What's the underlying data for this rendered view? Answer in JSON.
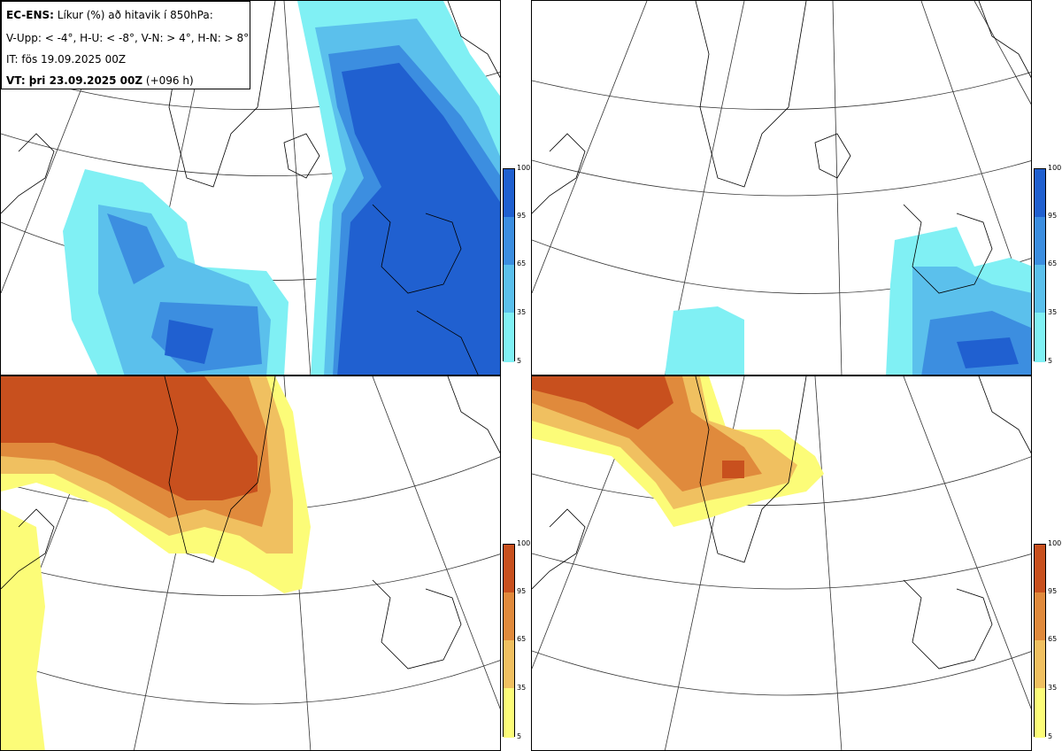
{
  "legend": {
    "line1_bold": "EC-ENS:",
    "line1_rest": " Líkur (%) að hitavik í 850hPa:",
    "line2": "V-Upp: < -4°, H-U: < -8°, V-N: > 4°, H-N: > 8°",
    "line3": "IT: fös 19.09.2025 00Z",
    "line4_bold": "VT: þri 23.09.2025 00Z",
    "line4_rest": " (+096 h)"
  },
  "colorbars": {
    "cold": {
      "ticks": [
        "100",
        "95",
        "65",
        "35",
        "5"
      ],
      "colors": [
        "#2060d0",
        "#3c8ee0",
        "#5bc0ec",
        "#80f0f4"
      ]
    },
    "warm": {
      "ticks": [
        "100",
        "95",
        "65",
        "35",
        "5"
      ],
      "colors": [
        "#c8501e",
        "#e08a3c",
        "#f0c060",
        "#fcfc78"
      ]
    }
  },
  "panels": [
    {
      "id": "top-left",
      "description_name": "cold-anomaly-4"
    },
    {
      "id": "top-right",
      "description_name": "cold-anomaly-8"
    },
    {
      "id": "bottom-left",
      "description_name": "warm-anomaly-4"
    },
    {
      "id": "bottom-right",
      "description_name": "warm-anomaly-8"
    }
  ]
}
